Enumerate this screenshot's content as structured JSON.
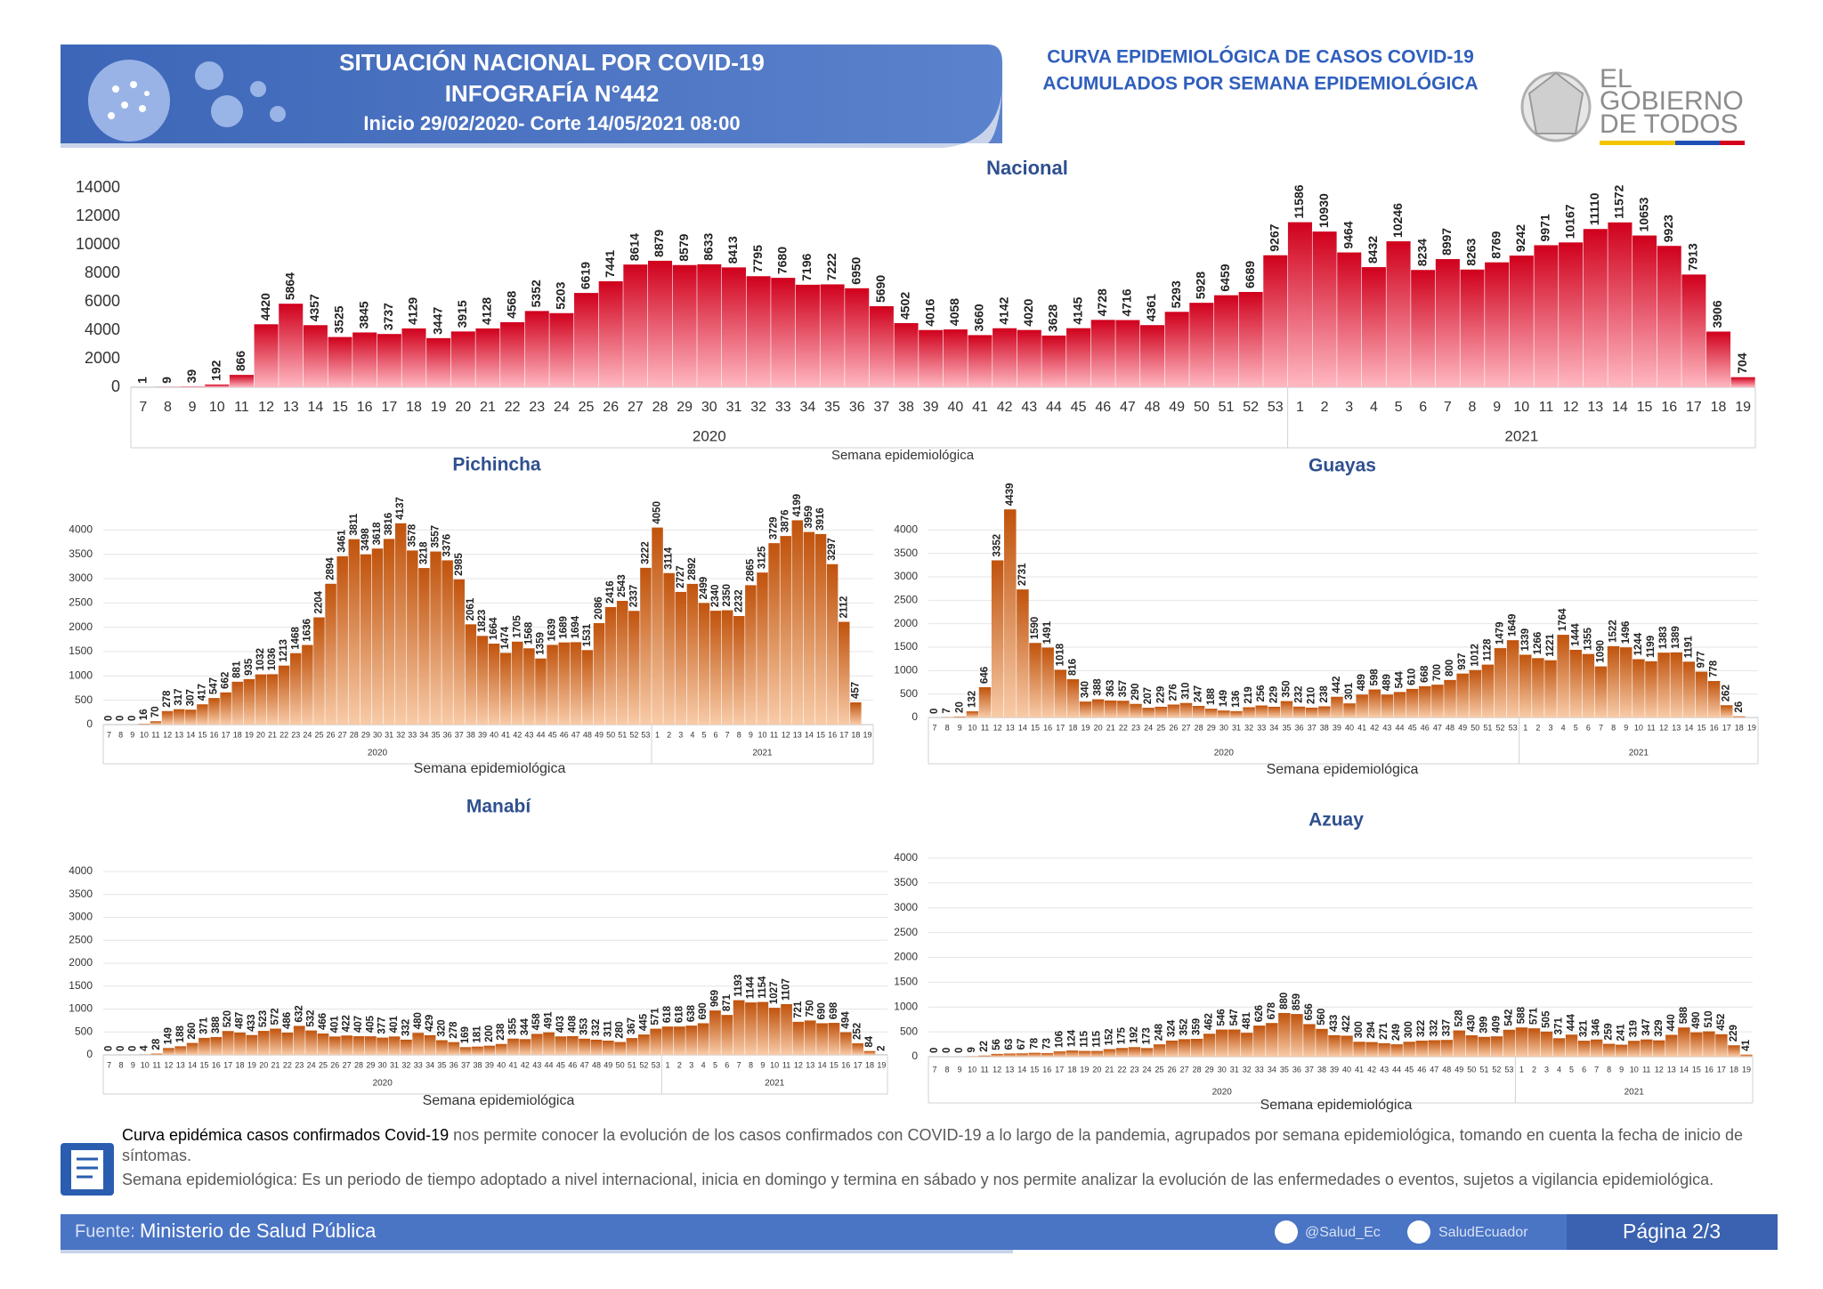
{
  "header": {
    "title_lines": [
      "SITUACIÓN NACIONAL POR  COVID-19",
      "INFOGRAFÍA N°442",
      "Inicio 29/02/2020- Corte 14/05/2021 08:00"
    ],
    "subtitle_lines": [
      "CURVA EPIDEMIOLÓGICA DE CASOS COVID-19",
      "ACUMULADOS POR SEMANA EPIDEMIOLÓGICA"
    ],
    "logo_lines": [
      "EL",
      "GOBIERNO",
      "DE TODOS"
    ]
  },
  "chart_data": [
    {
      "type": "bar",
      "title": "Nacional",
      "xlabel": "Semana epidemiológica",
      "color": "#d0001c",
      "color_light": "#ffb8c2",
      "grid": false,
      "ylim": [
        0,
        14000
      ],
      "yticks": [
        0,
        2000,
        4000,
        6000,
        8000,
        10000,
        12000,
        14000
      ],
      "category_groups": [
        {
          "label": "2020",
          "categories": [
            7,
            8,
            9,
            10,
            11,
            12,
            13,
            14,
            15,
            16,
            17,
            18,
            19,
            20,
            21,
            22,
            23,
            24,
            25,
            26,
            27,
            28,
            29,
            30,
            31,
            32,
            33,
            34,
            35,
            36,
            37,
            38,
            39,
            40,
            41,
            42,
            43,
            44,
            45,
            46,
            47,
            48,
            49,
            50,
            51,
            52,
            53
          ]
        },
        {
          "label": "2021",
          "categories": [
            1,
            2,
            3,
            4,
            5,
            6,
            7,
            8,
            9,
            10,
            11,
            12,
            13,
            14,
            15,
            16,
            17,
            18,
            19
          ]
        }
      ],
      "values": [
        1,
        9,
        39,
        192,
        866,
        4420,
        5864,
        4357,
        3525,
        3845,
        3737,
        4129,
        3447,
        3915,
        4128,
        4568,
        5352,
        5203,
        6619,
        7441,
        8614,
        8879,
        8579,
        8633,
        8413,
        7795,
        7680,
        7196,
        7222,
        6950,
        5690,
        4502,
        4016,
        4058,
        3660,
        4142,
        4020,
        3628,
        4145,
        4728,
        4716,
        4361,
        5293,
        5928,
        6459,
        6689,
        9267,
        11586,
        10930,
        9464,
        8432,
        10246,
        8234,
        8997,
        8263,
        8769,
        9242,
        9971,
        10167,
        11110,
        11572,
        10653,
        9923,
        7913,
        3906,
        704
      ]
    },
    {
      "type": "bar",
      "title": "Pichincha",
      "xlabel": "Semana epidemiológica",
      "color": "#c0530c",
      "color_light": "#f8cba8",
      "grid": true,
      "ylim": [
        0,
        4500
      ],
      "yticks": [
        0,
        500,
        1000,
        1500,
        2000,
        2500,
        3000,
        3500,
        4000
      ],
      "category_groups": [
        {
          "label": "2020",
          "categories": [
            7,
            8,
            9,
            10,
            11,
            12,
            13,
            14,
            15,
            16,
            17,
            18,
            19,
            20,
            21,
            22,
            23,
            24,
            25,
            26,
            27,
            28,
            29,
            30,
            31,
            32,
            33,
            34,
            35,
            36,
            37,
            38,
            39,
            40,
            41,
            42,
            43,
            44,
            45,
            46,
            47,
            48,
            49,
            50,
            51,
            52,
            53
          ]
        },
        {
          "label": "2021",
          "categories": [
            1,
            2,
            3,
            4,
            5,
            6,
            7,
            8,
            9,
            10,
            11,
            12,
            13,
            14,
            15,
            16,
            17,
            18,
            19
          ]
        }
      ],
      "values": [
        0,
        0,
        0,
        16,
        70,
        278,
        317,
        307,
        417,
        547,
        662,
        881,
        935,
        1032,
        1036,
        1213,
        1468,
        1636,
        2204,
        2894,
        3461,
        3811,
        3498,
        3618,
        3816,
        4137,
        3578,
        3218,
        3557,
        3376,
        2985,
        2061,
        1823,
        1664,
        1474,
        1705,
        1568,
        1359,
        1639,
        1689,
        1694,
        1531,
        2086,
        2416,
        2543,
        2337,
        3222,
        4050,
        3114,
        2727,
        2892,
        2499,
        2340,
        2350,
        2232,
        2865,
        3125,
        3729,
        3876,
        4199,
        3959,
        3916,
        3297,
        2112,
        457,
        null
      ]
    },
    {
      "type": "bar",
      "title": "Guayas",
      "xlabel": "Semana epidemiológica",
      "color": "#c0530c",
      "color_light": "#f8cba8",
      "grid": true,
      "ylim": [
        0,
        4500
      ],
      "yticks": [
        0,
        500,
        1000,
        1500,
        2000,
        2500,
        3000,
        3500,
        4000
      ],
      "category_groups": [
        {
          "label": "2020",
          "categories": [
            7,
            8,
            9,
            10,
            11,
            12,
            13,
            14,
            15,
            16,
            17,
            18,
            19,
            20,
            21,
            22,
            23,
            24,
            25,
            26,
            27,
            28,
            29,
            30,
            31,
            32,
            33,
            34,
            35,
            36,
            37,
            38,
            39,
            40,
            41,
            42,
            43,
            44,
            45,
            46,
            47,
            48,
            49,
            50,
            51,
            52,
            53
          ]
        },
        {
          "label": "2021",
          "categories": [
            1,
            2,
            3,
            4,
            5,
            6,
            7,
            8,
            9,
            10,
            11,
            12,
            13,
            14,
            15,
            16,
            17,
            18,
            19
          ]
        }
      ],
      "values": [
        0,
        7,
        20,
        132,
        646,
        3352,
        4439,
        2731,
        1590,
        1491,
        1018,
        816,
        340,
        388,
        363,
        357,
        290,
        207,
        229,
        276,
        310,
        247,
        188,
        149,
        136,
        219,
        256,
        229,
        350,
        232,
        210,
        238,
        442,
        301,
        489,
        598,
        489,
        544,
        610,
        668,
        700,
        800,
        937,
        1012,
        1128,
        1479,
        1649,
        1339,
        1266,
        1221,
        1764,
        1444,
        1355,
        1090,
        1522,
        1496,
        1244,
        1199,
        1383,
        1389,
        1191,
        977,
        778,
        262,
        26,
        null
      ]
    },
    {
      "type": "bar",
      "title": "Manabí",
      "xlabel": "Semana epidemiológica",
      "color": "#c0530c",
      "color_light": "#f8cba8",
      "grid": true,
      "ylim": [
        0,
        4000
      ],
      "yticks": [
        0,
        500,
        1000,
        1500,
        2000,
        2500,
        3000,
        3500,
        4000
      ],
      "category_groups": [
        {
          "label": "2020",
          "categories": [
            7,
            8,
            9,
            10,
            11,
            12,
            13,
            14,
            15,
            16,
            17,
            18,
            19,
            20,
            21,
            22,
            23,
            24,
            25,
            26,
            27,
            28,
            29,
            30,
            31,
            32,
            33,
            34,
            35,
            36,
            37,
            38,
            39,
            40,
            41,
            42,
            43,
            44,
            45,
            46,
            47,
            48,
            49,
            50,
            51,
            52,
            53
          ]
        },
        {
          "label": "2021",
          "categories": [
            1,
            2,
            3,
            4,
            5,
            6,
            7,
            8,
            9,
            10,
            11,
            12,
            13,
            14,
            15,
            16,
            17,
            18,
            19
          ]
        }
      ],
      "values": [
        0,
        0,
        0,
        4,
        28,
        149,
        188,
        260,
        371,
        388,
        520,
        487,
        433,
        523,
        572,
        486,
        632,
        532,
        466,
        401,
        422,
        407,
        405,
        377,
        401,
        332,
        480,
        429,
        320,
        278,
        169,
        181,
        200,
        238,
        355,
        344,
        458,
        491,
        403,
        408,
        353,
        332,
        311,
        280,
        367,
        445,
        571,
        618,
        618,
        638,
        690,
        969,
        871,
        1193,
        1144,
        1154,
        1027,
        1107,
        721,
        750,
        690,
        698,
        494,
        252,
        84,
        2
      ]
    },
    {
      "type": "bar",
      "title": "Azuay",
      "xlabel": "Semana epidemiológica",
      "color": "#c0530c",
      "color_light": "#f8cba8",
      "grid": true,
      "ylim": [
        0,
        4000
      ],
      "yticks": [
        0,
        500,
        1000,
        1500,
        2000,
        2500,
        3000,
        3500,
        4000
      ],
      "category_groups": [
        {
          "label": "2020",
          "categories": [
            7,
            8,
            9,
            10,
            11,
            12,
            13,
            14,
            15,
            16,
            17,
            18,
            19,
            20,
            21,
            22,
            23,
            24,
            25,
            26,
            27,
            28,
            29,
            30,
            31,
            32,
            33,
            34,
            35,
            36,
            37,
            38,
            39,
            40,
            41,
            42,
            43,
            44,
            45,
            46,
            47,
            48,
            49,
            50,
            51,
            52,
            53
          ]
        },
        {
          "label": "2021",
          "categories": [
            1,
            2,
            3,
            4,
            5,
            6,
            7,
            8,
            9,
            10,
            11,
            12,
            13,
            14,
            15,
            16,
            17,
            18,
            19
          ]
        }
      ],
      "values": [
        0,
        0,
        0,
        9,
        22,
        56,
        63,
        67,
        78,
        73,
        106,
        124,
        115,
        115,
        152,
        175,
        192,
        173,
        248,
        324,
        352,
        359,
        462,
        546,
        547,
        481,
        626,
        678,
        880,
        859,
        656,
        560,
        433,
        422,
        300,
        294,
        271,
        249,
        300,
        322,
        332,
        337,
        528,
        430,
        399,
        409,
        542,
        588,
        571,
        505,
        371,
        444,
        321,
        346,
        259,
        241,
        319,
        347,
        329,
        440,
        588,
        490,
        510,
        452,
        229,
        41
      ]
    }
  ],
  "notes": [
    {
      "lead": "Curva epidémica casos confirmados Covid-19",
      "text": " nos permite conocer la evolución de los casos confirmados con COVID-19 a lo largo de la pandemia, agrupados por semana epidemiológica, tomando en cuenta la fecha de inicio de síntomas."
    },
    {
      "text": "Semana epidemiológica: Es un periodo de tiempo adoptado a nivel internacional, inicia en domingo y termina en sábado y nos permite analizar la evolución de las enfermedades o eventos, sujetos a vigilancia epidemiológica."
    }
  ],
  "footer": {
    "source_label": "Fuente:",
    "source": "Ministerio de Salud Pública",
    "twitter": "@Salud_Ec",
    "facebook": "SaludEcuador",
    "page": "Página 2/3"
  }
}
